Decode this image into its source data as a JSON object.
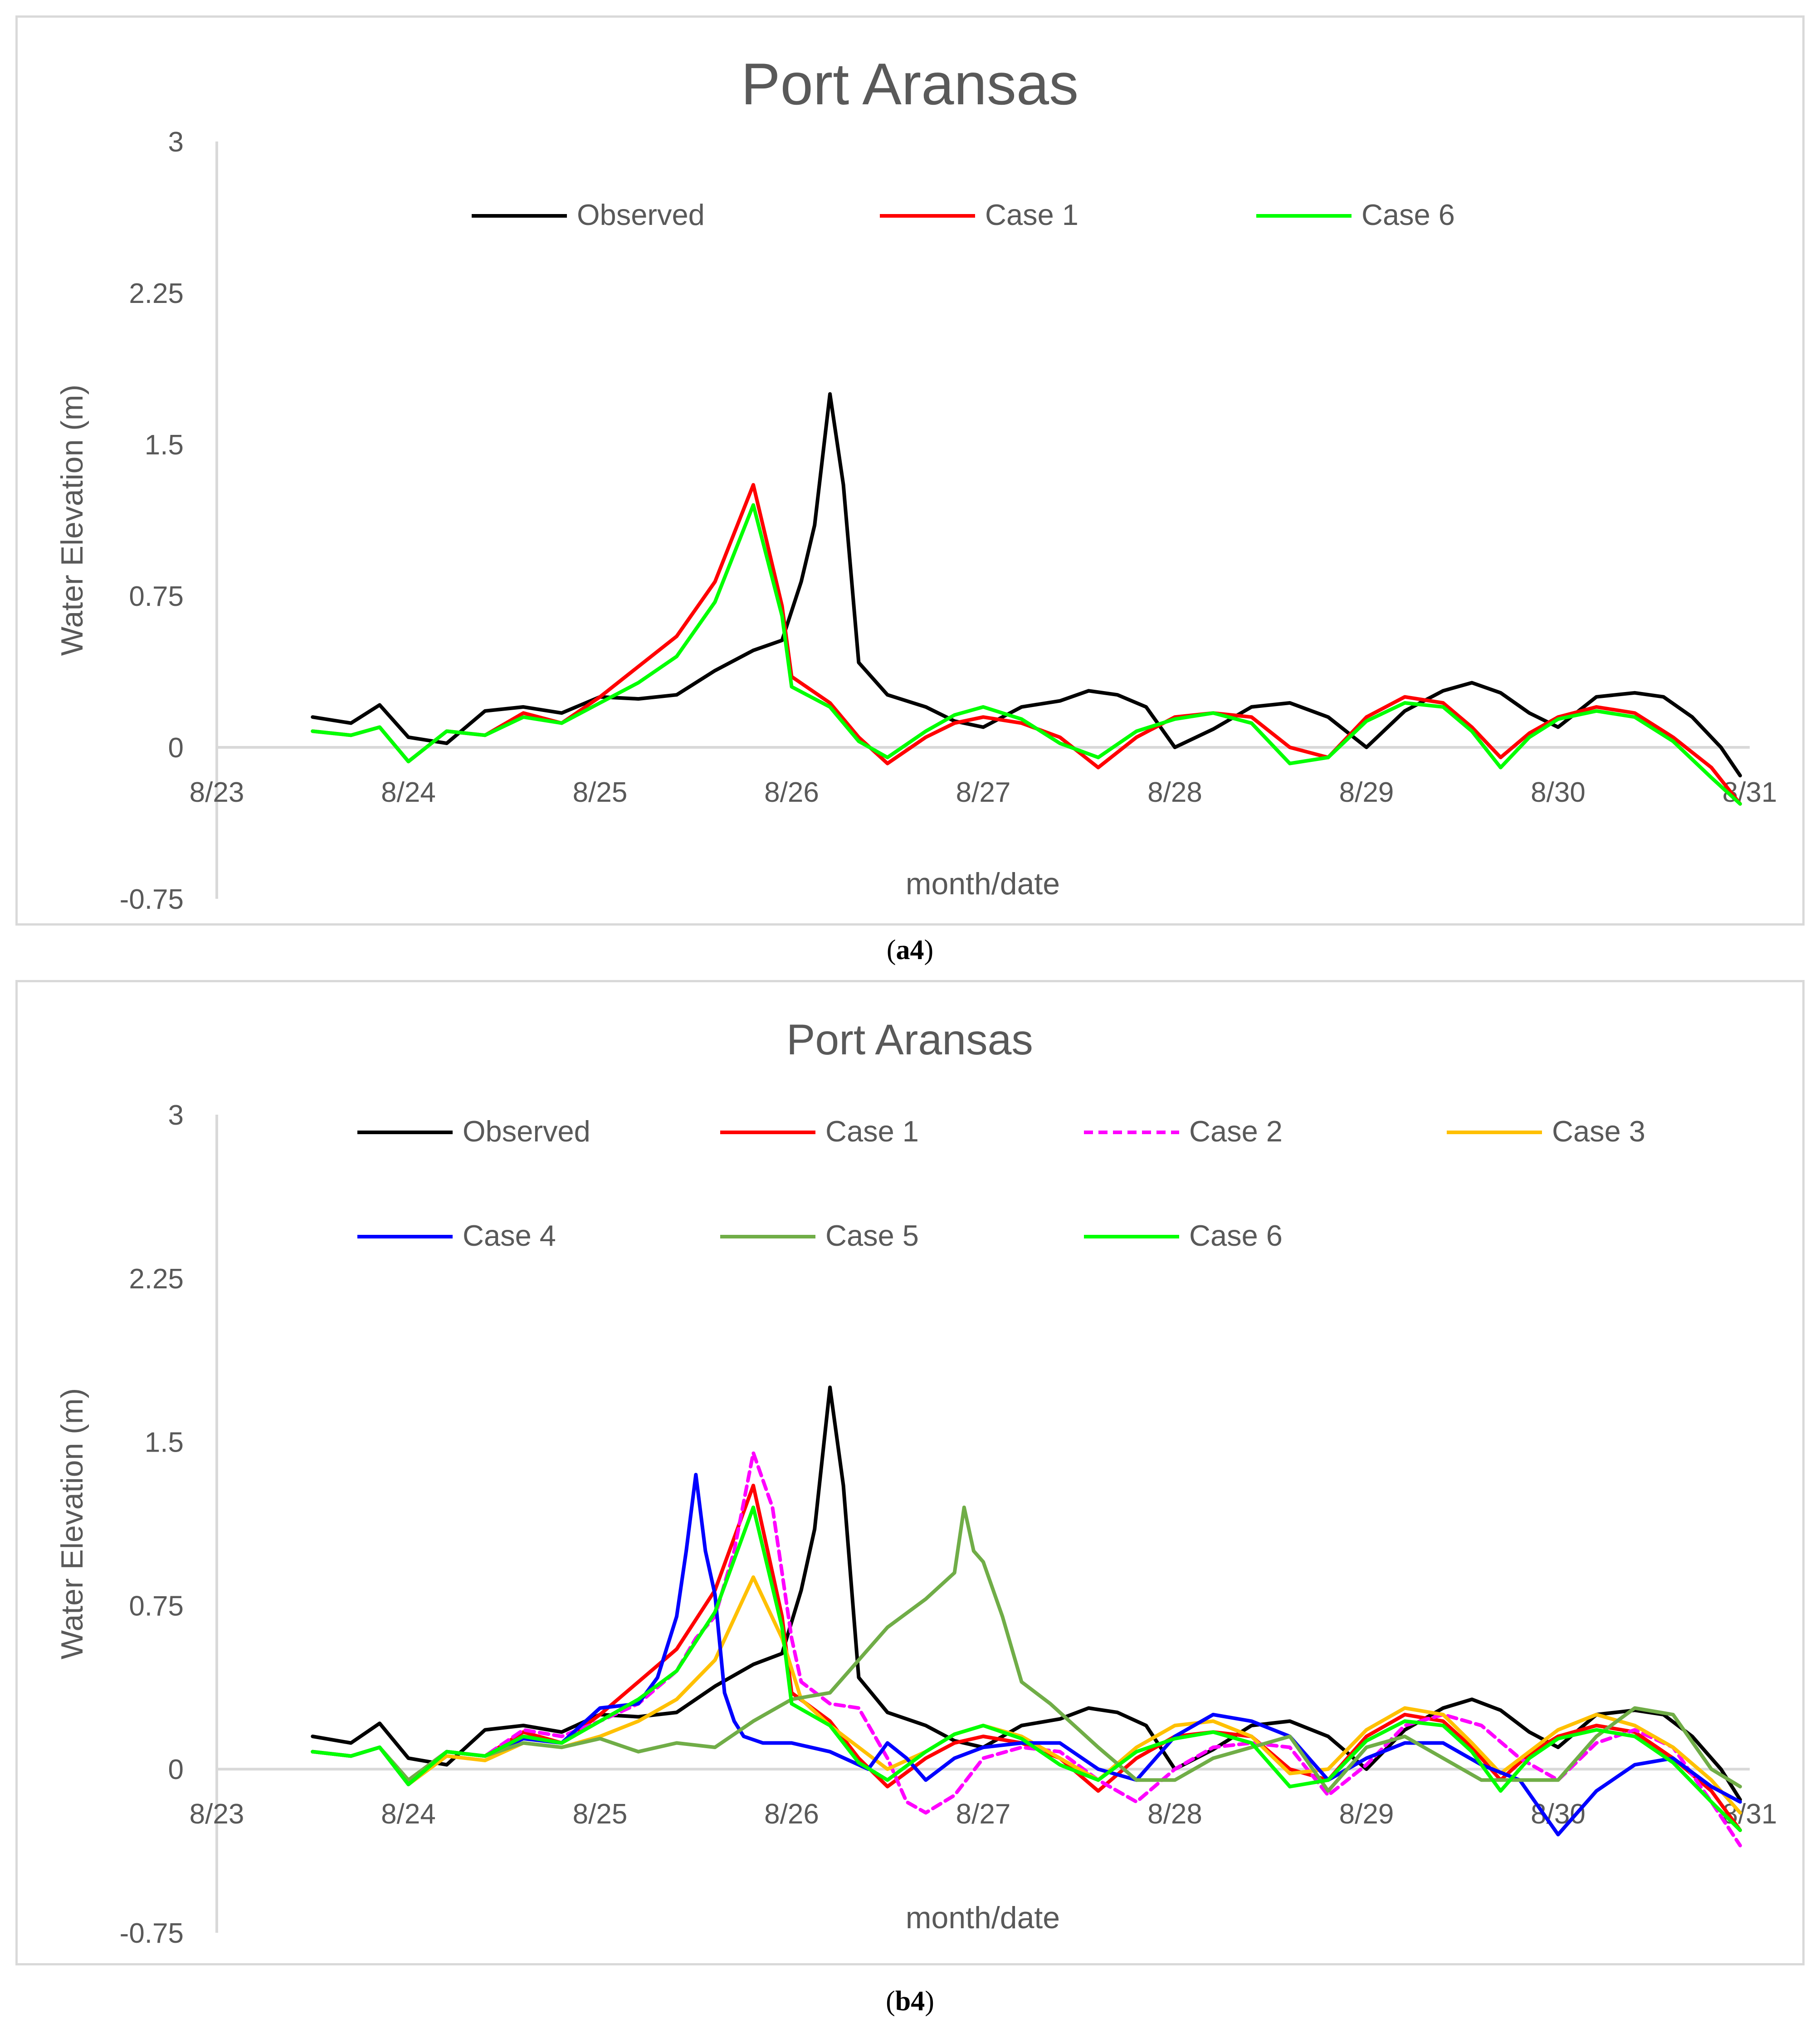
{
  "captions": {
    "a": "a4",
    "b": "b4"
  },
  "colors": {
    "observed": "#000000",
    "case1": "#ff0000",
    "case2": "#ff00ff",
    "case3": "#ffc000",
    "case4": "#0000ff",
    "case5": "#70ad47",
    "case6": "#00ff00",
    "axis": "#d9d9d9",
    "text": "#595959"
  },
  "chart_data": [
    {
      "id": "a4",
      "type": "line",
      "title": "Port Aransas",
      "xlabel": "month/date",
      "ylabel": "Water Elevation (m)",
      "xlim": [
        0,
        8
      ],
      "ylim": [
        -0.75,
        3
      ],
      "x_ticks": [
        "8/23",
        "8/24",
        "8/25",
        "8/26",
        "8/27",
        "8/28",
        "8/29",
        "8/30",
        "8/31"
      ],
      "y_ticks": [
        "3",
        "2.25",
        "1.5",
        "0.75",
        "0",
        "-0.75"
      ],
      "legend_position": "top",
      "legend": [
        "Observed",
        "Case 1",
        "Case 6"
      ],
      "series": [
        {
          "name": "Observed",
          "key": "observed",
          "dash": false,
          "x": [
            0.5,
            0.7,
            0.85,
            1.0,
            1.2,
            1.4,
            1.6,
            1.8,
            2.0,
            2.2,
            2.4,
            2.6,
            2.8,
            2.95,
            3.05,
            3.12,
            3.2,
            3.27,
            3.35,
            3.5,
            3.7,
            3.85,
            4.0,
            4.2,
            4.4,
            4.55,
            4.7,
            4.85,
            5.0,
            5.2,
            5.4,
            5.6,
            5.8,
            6.0,
            6.2,
            6.4,
            6.55,
            6.7,
            6.85,
            7.0,
            7.2,
            7.4,
            7.55,
            7.7,
            7.85,
            7.95
          ],
          "values": [
            0.15,
            0.12,
            0.21,
            0.05,
            0.02,
            0.18,
            0.2,
            0.17,
            0.25,
            0.24,
            0.26,
            0.38,
            0.48,
            0.53,
            0.82,
            1.1,
            1.75,
            1.3,
            0.42,
            0.26,
            0.2,
            0.13,
            0.1,
            0.2,
            0.23,
            0.28,
            0.26,
            0.2,
            0.0,
            0.09,
            0.2,
            0.22,
            0.15,
            0.0,
            0.18,
            0.28,
            0.32,
            0.27,
            0.17,
            0.1,
            0.25,
            0.27,
            0.25,
            0.15,
            0.0,
            -0.14
          ]
        },
        {
          "name": "Case 1",
          "key": "case1",
          "dash": false,
          "x": [
            0.5,
            0.7,
            0.85,
            1.0,
            1.2,
            1.4,
            1.6,
            1.8,
            2.0,
            2.2,
            2.4,
            2.6,
            2.8,
            2.95,
            3.0,
            3.2,
            3.35,
            3.5,
            3.7,
            3.85,
            4.0,
            4.2,
            4.4,
            4.6,
            4.8,
            5.0,
            5.2,
            5.4,
            5.6,
            5.8,
            6.0,
            6.2,
            6.4,
            6.55,
            6.7,
            6.85,
            7.0,
            7.2,
            7.4,
            7.6,
            7.8,
            7.95
          ],
          "values": [
            0.08,
            0.06,
            0.1,
            -0.07,
            0.08,
            0.06,
            0.17,
            0.12,
            0.25,
            0.4,
            0.55,
            0.82,
            1.3,
            0.7,
            0.35,
            0.22,
            0.05,
            -0.08,
            0.05,
            0.12,
            0.15,
            0.12,
            0.05,
            -0.1,
            0.05,
            0.15,
            0.17,
            0.15,
            0.0,
            -0.05,
            0.15,
            0.25,
            0.22,
            0.1,
            -0.05,
            0.07,
            0.15,
            0.2,
            0.17,
            0.05,
            -0.1,
            -0.28
          ]
        },
        {
          "name": "Case 6",
          "key": "case6",
          "dash": false,
          "x": [
            0.5,
            0.7,
            0.85,
            1.0,
            1.2,
            1.4,
            1.6,
            1.8,
            2.0,
            2.2,
            2.4,
            2.6,
            2.8,
            2.95,
            3.0,
            3.2,
            3.35,
            3.5,
            3.7,
            3.85,
            4.0,
            4.2,
            4.4,
            4.6,
            4.8,
            5.0,
            5.2,
            5.4,
            5.6,
            5.8,
            6.0,
            6.2,
            6.4,
            6.55,
            6.7,
            6.85,
            7.0,
            7.2,
            7.4,
            7.6,
            7.8,
            7.95
          ],
          "values": [
            0.08,
            0.06,
            0.1,
            -0.07,
            0.08,
            0.06,
            0.15,
            0.12,
            0.22,
            0.32,
            0.45,
            0.72,
            1.2,
            0.65,
            0.3,
            0.2,
            0.03,
            -0.05,
            0.08,
            0.16,
            0.2,
            0.14,
            0.02,
            -0.05,
            0.08,
            0.14,
            0.17,
            0.12,
            -0.08,
            -0.05,
            0.13,
            0.22,
            0.2,
            0.08,
            -0.1,
            0.05,
            0.14,
            0.18,
            0.15,
            0.03,
            -0.15,
            -0.28
          ]
        }
      ]
    },
    {
      "id": "b4",
      "type": "line",
      "title": "Port Aransas",
      "xlabel": "month/date",
      "ylabel": "Water Elevation (m)",
      "xlim": [
        0,
        8
      ],
      "ylim": [
        -0.75,
        3
      ],
      "x_ticks": [
        "8/23",
        "8/24",
        "8/25",
        "8/26",
        "8/27",
        "8/28",
        "8/29",
        "8/30",
        "8/31"
      ],
      "y_ticks": [
        "3",
        "2.25",
        "1.5",
        "0.75",
        "0",
        "-0.75"
      ],
      "legend_position": "top",
      "legend": [
        "Observed",
        "Case 1",
        "Case 2",
        "Case 3",
        "Case 4",
        "Case 5",
        "Case 6"
      ],
      "series": [
        {
          "name": "Observed",
          "key": "observed",
          "dash": false,
          "x": [
            0.5,
            0.7,
            0.85,
            1.0,
            1.2,
            1.4,
            1.6,
            1.8,
            2.0,
            2.2,
            2.4,
            2.6,
            2.8,
            2.95,
            3.05,
            3.12,
            3.2,
            3.27,
            3.35,
            3.5,
            3.7,
            3.85,
            4.0,
            4.2,
            4.4,
            4.55,
            4.7,
            4.85,
            5.0,
            5.2,
            5.4,
            5.6,
            5.8,
            6.0,
            6.2,
            6.4,
            6.55,
            6.7,
            6.85,
            7.0,
            7.2,
            7.4,
            7.55,
            7.7,
            7.85,
            7.95
          ],
          "values": [
            0.15,
            0.12,
            0.21,
            0.05,
            0.02,
            0.18,
            0.2,
            0.17,
            0.25,
            0.24,
            0.26,
            0.38,
            0.48,
            0.53,
            0.82,
            1.1,
            1.75,
            1.3,
            0.42,
            0.26,
            0.2,
            0.13,
            0.1,
            0.2,
            0.23,
            0.28,
            0.26,
            0.2,
            0.0,
            0.09,
            0.2,
            0.22,
            0.15,
            0.0,
            0.18,
            0.28,
            0.32,
            0.27,
            0.17,
            0.1,
            0.25,
            0.27,
            0.25,
            0.15,
            0.0,
            -0.14
          ]
        },
        {
          "name": "Case 1",
          "key": "case1",
          "dash": false,
          "x": [
            0.5,
            0.7,
            0.85,
            1.0,
            1.2,
            1.4,
            1.6,
            1.8,
            2.0,
            2.2,
            2.4,
            2.6,
            2.8,
            2.95,
            3.0,
            3.2,
            3.35,
            3.5,
            3.7,
            3.85,
            4.0,
            4.2,
            4.4,
            4.6,
            4.8,
            5.0,
            5.2,
            5.4,
            5.6,
            5.8,
            6.0,
            6.2,
            6.4,
            6.55,
            6.7,
            6.85,
            7.0,
            7.2,
            7.4,
            7.6,
            7.8,
            7.95
          ],
          "values": [
            0.08,
            0.06,
            0.1,
            -0.07,
            0.08,
            0.06,
            0.17,
            0.12,
            0.25,
            0.4,
            0.55,
            0.82,
            1.3,
            0.7,
            0.35,
            0.22,
            0.05,
            -0.08,
            0.05,
            0.12,
            0.15,
            0.12,
            0.05,
            -0.1,
            0.05,
            0.15,
            0.17,
            0.15,
            0.0,
            -0.05,
            0.15,
            0.25,
            0.22,
            0.1,
            -0.05,
            0.07,
            0.15,
            0.2,
            0.17,
            0.05,
            -0.1,
            -0.28
          ]
        },
        {
          "name": "Case 2",
          "key": "case2",
          "dash": true,
          "x": [
            0.5,
            0.7,
            0.85,
            1.0,
            1.2,
            1.4,
            1.6,
            1.8,
            2.0,
            2.2,
            2.4,
            2.5,
            2.6,
            2.7,
            2.8,
            2.9,
            2.95,
            3.0,
            3.05,
            3.2,
            3.35,
            3.5,
            3.6,
            3.7,
            3.85,
            4.0,
            4.2,
            4.4,
            4.6,
            4.8,
            5.0,
            5.2,
            5.4,
            5.6,
            5.8,
            6.0,
            6.2,
            6.4,
            6.6,
            6.8,
            7.0,
            7.2,
            7.4,
            7.6,
            7.8,
            7.95
          ],
          "values": [
            0.08,
            0.06,
            0.1,
            -0.05,
            0.08,
            0.06,
            0.18,
            0.15,
            0.22,
            0.3,
            0.45,
            0.6,
            0.7,
            1.0,
            1.45,
            1.2,
            0.9,
            0.6,
            0.4,
            0.3,
            0.28,
            0.05,
            -0.15,
            -0.2,
            -0.12,
            0.05,
            0.1,
            0.08,
            -0.05,
            -0.15,
            0.0,
            0.1,
            0.12,
            0.1,
            -0.12,
            0.02,
            0.2,
            0.25,
            0.2,
            0.05,
            -0.05,
            0.12,
            0.18,
            0.1,
            -0.15,
            -0.35
          ]
        },
        {
          "name": "Case 3",
          "key": "case3",
          "dash": false,
          "x": [
            0.5,
            0.7,
            0.85,
            1.0,
            1.2,
            1.4,
            1.6,
            1.8,
            2.0,
            2.2,
            2.4,
            2.6,
            2.8,
            2.95,
            3.05,
            3.2,
            3.35,
            3.5,
            3.7,
            3.85,
            4.0,
            4.2,
            4.4,
            4.6,
            4.8,
            5.0,
            5.2,
            5.4,
            5.6,
            5.8,
            6.0,
            6.2,
            6.4,
            6.55,
            6.7,
            6.85,
            7.0,
            7.2,
            7.4,
            7.6,
            7.8,
            7.95
          ],
          "values": [
            0.08,
            0.06,
            0.1,
            -0.07,
            0.06,
            0.04,
            0.12,
            0.1,
            0.15,
            0.22,
            0.32,
            0.5,
            0.88,
            0.6,
            0.32,
            0.2,
            0.1,
            0.0,
            0.08,
            0.16,
            0.2,
            0.15,
            0.05,
            -0.05,
            0.1,
            0.2,
            0.22,
            0.15,
            -0.02,
            0.0,
            0.18,
            0.28,
            0.25,
            0.12,
            -0.02,
            0.08,
            0.18,
            0.25,
            0.2,
            0.1,
            -0.05,
            -0.2
          ]
        },
        {
          "name": "Case 4",
          "key": "case4",
          "dash": false,
          "x": [
            0.5,
            0.7,
            0.85,
            1.0,
            1.2,
            1.4,
            1.6,
            1.8,
            2.0,
            2.2,
            2.3,
            2.4,
            2.45,
            2.5,
            2.55,
            2.6,
            2.65,
            2.7,
            2.75,
            2.85,
            3.0,
            3.2,
            3.4,
            3.5,
            3.6,
            3.7,
            3.85,
            4.0,
            4.2,
            4.4,
            4.6,
            4.8,
            5.0,
            5.2,
            5.4,
            5.6,
            5.8,
            6.0,
            6.2,
            6.4,
            6.6,
            6.8,
            7.0,
            7.2,
            7.4,
            7.6,
            7.8,
            7.95
          ],
          "values": [
            0.08,
            0.06,
            0.1,
            -0.07,
            0.08,
            0.06,
            0.14,
            0.12,
            0.28,
            0.3,
            0.42,
            0.7,
            1.0,
            1.35,
            1.0,
            0.8,
            0.35,
            0.22,
            0.15,
            0.12,
            0.12,
            0.08,
            0.0,
            0.12,
            0.05,
            -0.05,
            0.05,
            0.1,
            0.12,
            0.12,
            0.0,
            -0.05,
            0.15,
            0.25,
            0.22,
            0.15,
            -0.05,
            0.05,
            0.12,
            0.12,
            0.02,
            -0.05,
            -0.3,
            -0.1,
            0.02,
            0.05,
            -0.08,
            -0.15
          ]
        },
        {
          "name": "Case 5",
          "key": "case5",
          "dash": false,
          "x": [
            0.5,
            0.7,
            0.85,
            1.0,
            1.2,
            1.4,
            1.6,
            1.8,
            2.0,
            2.2,
            2.4,
            2.6,
            2.8,
            3.0,
            3.2,
            3.35,
            3.5,
            3.7,
            3.85,
            3.9,
            3.95,
            4.0,
            4.1,
            4.2,
            4.35,
            4.5,
            4.6,
            4.8,
            5.0,
            5.2,
            5.4,
            5.6,
            5.8,
            6.0,
            6.2,
            6.4,
            6.6,
            6.8,
            7.0,
            7.2,
            7.4,
            7.6,
            7.8,
            7.95
          ],
          "values": [
            0.08,
            0.06,
            0.1,
            -0.05,
            0.08,
            0.06,
            0.12,
            0.1,
            0.14,
            0.08,
            0.12,
            0.1,
            0.22,
            0.32,
            0.35,
            0.5,
            0.65,
            0.78,
            0.9,
            1.2,
            1.0,
            0.95,
            0.7,
            0.4,
            0.3,
            0.18,
            0.1,
            -0.05,
            -0.05,
            0.05,
            0.1,
            0.15,
            -0.1,
            0.1,
            0.15,
            0.05,
            -0.05,
            -0.05,
            -0.05,
            0.15,
            0.28,
            0.25,
            0.0,
            -0.08
          ]
        },
        {
          "name": "Case 6",
          "key": "case6",
          "dash": false,
          "x": [
            0.5,
            0.7,
            0.85,
            1.0,
            1.2,
            1.4,
            1.6,
            1.8,
            2.0,
            2.2,
            2.4,
            2.6,
            2.8,
            2.95,
            3.0,
            3.2,
            3.35,
            3.5,
            3.7,
            3.85,
            4.0,
            4.2,
            4.4,
            4.6,
            4.8,
            5.0,
            5.2,
            5.4,
            5.6,
            5.8,
            6.0,
            6.2,
            6.4,
            6.55,
            6.7,
            6.85,
            7.0,
            7.2,
            7.4,
            7.6,
            7.8,
            7.95
          ],
          "values": [
            0.08,
            0.06,
            0.1,
            -0.07,
            0.08,
            0.06,
            0.15,
            0.12,
            0.22,
            0.32,
            0.45,
            0.72,
            1.2,
            0.65,
            0.3,
            0.2,
            0.03,
            -0.05,
            0.08,
            0.16,
            0.2,
            0.14,
            0.02,
            -0.05,
            0.08,
            0.14,
            0.17,
            0.12,
            -0.08,
            -0.05,
            0.13,
            0.22,
            0.2,
            0.08,
            -0.1,
            0.05,
            0.14,
            0.18,
            0.15,
            0.03,
            -0.15,
            -0.28
          ]
        }
      ]
    }
  ]
}
